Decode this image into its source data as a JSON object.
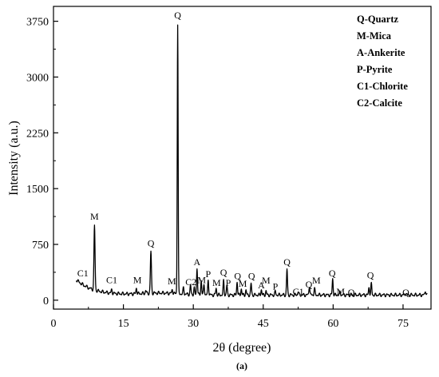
{
  "chart_data": {
    "type": "line",
    "xlabel": "2θ (degree)",
    "ylabel": "Intensity (a.u.)",
    "caption": "(a)",
    "xlim": [
      0,
      81
    ],
    "ylim": [
      -120,
      3950
    ],
    "x_ticks": [
      0,
      15,
      30,
      45,
      60,
      75
    ],
    "y_ticks": [
      0,
      750,
      1500,
      2250,
      3000,
      3750
    ],
    "x_tick_labels": [
      "0",
      "15",
      "30",
      "45",
      "60",
      "75"
    ],
    "y_tick_labels": [
      "0",
      "750",
      "1500",
      "2250",
      "3000",
      "3750"
    ],
    "legend": {
      "position": "top-right",
      "entries": [
        "Q-Quartz",
        "M-Mica",
        "A-Ankerite",
        "P-Pyrite",
        "C1-Chlorite",
        "C2-Calcite"
      ]
    },
    "series": [
      {
        "color": "#000000",
        "peaks": [
          {
            "x": 5.5,
            "y": 230
          },
          {
            "x": 6.2,
            "y": 180
          },
          {
            "x": 8.8,
            "y": 1010
          },
          {
            "x": 12.5,
            "y": 150
          },
          {
            "x": 17.8,
            "y": 160
          },
          {
            "x": 19.8,
            "y": 130
          },
          {
            "x": 20.9,
            "y": 660
          },
          {
            "x": 23.5,
            "y": 100
          },
          {
            "x": 25.5,
            "y": 140
          },
          {
            "x": 26.65,
            "y": 3700
          },
          {
            "x": 27.9,
            "y": 180
          },
          {
            "x": 29.4,
            "y": 210
          },
          {
            "x": 30.2,
            "y": 180
          },
          {
            "x": 30.8,
            "y": 420
          },
          {
            "x": 31.7,
            "y": 260
          },
          {
            "x": 32.3,
            "y": 210
          },
          {
            "x": 33.2,
            "y": 270
          },
          {
            "x": 34.9,
            "y": 160
          },
          {
            "x": 36.5,
            "y": 280
          },
          {
            "x": 37.2,
            "y": 200
          },
          {
            "x": 39.4,
            "y": 240
          },
          {
            "x": 40.3,
            "y": 150
          },
          {
            "x": 41.3,
            "y": 140
          },
          {
            "x": 42.4,
            "y": 230
          },
          {
            "x": 44.6,
            "y": 140
          },
          {
            "x": 45.6,
            "y": 130
          },
          {
            "x": 47.6,
            "y": 130
          },
          {
            "x": 50.1,
            "y": 420
          },
          {
            "x": 52.5,
            "y": 110
          },
          {
            "x": 54.9,
            "y": 170
          },
          {
            "x": 56.0,
            "y": 170
          },
          {
            "x": 59.9,
            "y": 290
          },
          {
            "x": 61.5,
            "y": 120
          },
          {
            "x": 63.9,
            "y": 90
          },
          {
            "x": 67.7,
            "y": 170
          },
          {
            "x": 68.2,
            "y": 240
          },
          {
            "x": 73.5,
            "y": 80
          },
          {
            "x": 75.6,
            "y": 80
          },
          {
            "x": 79.8,
            "y": 110
          }
        ]
      }
    ],
    "annotations": [
      {
        "label": "C1",
        "x": 6.3,
        "y": 300
      },
      {
        "label": "M",
        "x": 8.8,
        "y": 1060
      },
      {
        "label": "C1",
        "x": 12.5,
        "y": 210
      },
      {
        "label": "M",
        "x": 18.0,
        "y": 210
      },
      {
        "label": "Q",
        "x": 20.9,
        "y": 700
      },
      {
        "label": "M",
        "x": 25.4,
        "y": 190
      },
      {
        "label": "Q",
        "x": 26.65,
        "y": 3770
      },
      {
        "label": "C2",
        "x": 29.5,
        "y": 180
      },
      {
        "label": "A",
        "x": 30.8,
        "y": 450
      },
      {
        "label": "M",
        "x": 31.8,
        "y": 210
      },
      {
        "label": "P",
        "x": 33.2,
        "y": 290
      },
      {
        "label": "M",
        "x": 35.0,
        "y": 170
      },
      {
        "label": "Q",
        "x": 36.5,
        "y": 310
      },
      {
        "label": "P",
        "x": 37.5,
        "y": 170
      },
      {
        "label": "Q",
        "x": 39.5,
        "y": 260
      },
      {
        "label": "M",
        "x": 40.6,
        "y": 160
      },
      {
        "label": "Q",
        "x": 42.5,
        "y": 260
      },
      {
        "label": "A",
        "x": 44.6,
        "y": 140
      },
      {
        "label": "M",
        "x": 45.6,
        "y": 200
      },
      {
        "label": "P",
        "x": 47.6,
        "y": 120
      },
      {
        "label": "Q",
        "x": 50.1,
        "y": 450
      },
      {
        "label": "C1",
        "x": 52.5,
        "y": 50
      },
      {
        "label": "Q",
        "x": 54.8,
        "y": 150
      },
      {
        "label": "M",
        "x": 56.4,
        "y": 200
      },
      {
        "label": "Q",
        "x": 59.8,
        "y": 300
      },
      {
        "label": "M",
        "x": 61.6,
        "y": 50
      },
      {
        "label": "Q",
        "x": 63.9,
        "y": 40
      },
      {
        "label": "Q",
        "x": 68.0,
        "y": 270
      },
      {
        "label": "Q",
        "x": 75.6,
        "y": 40
      }
    ]
  }
}
